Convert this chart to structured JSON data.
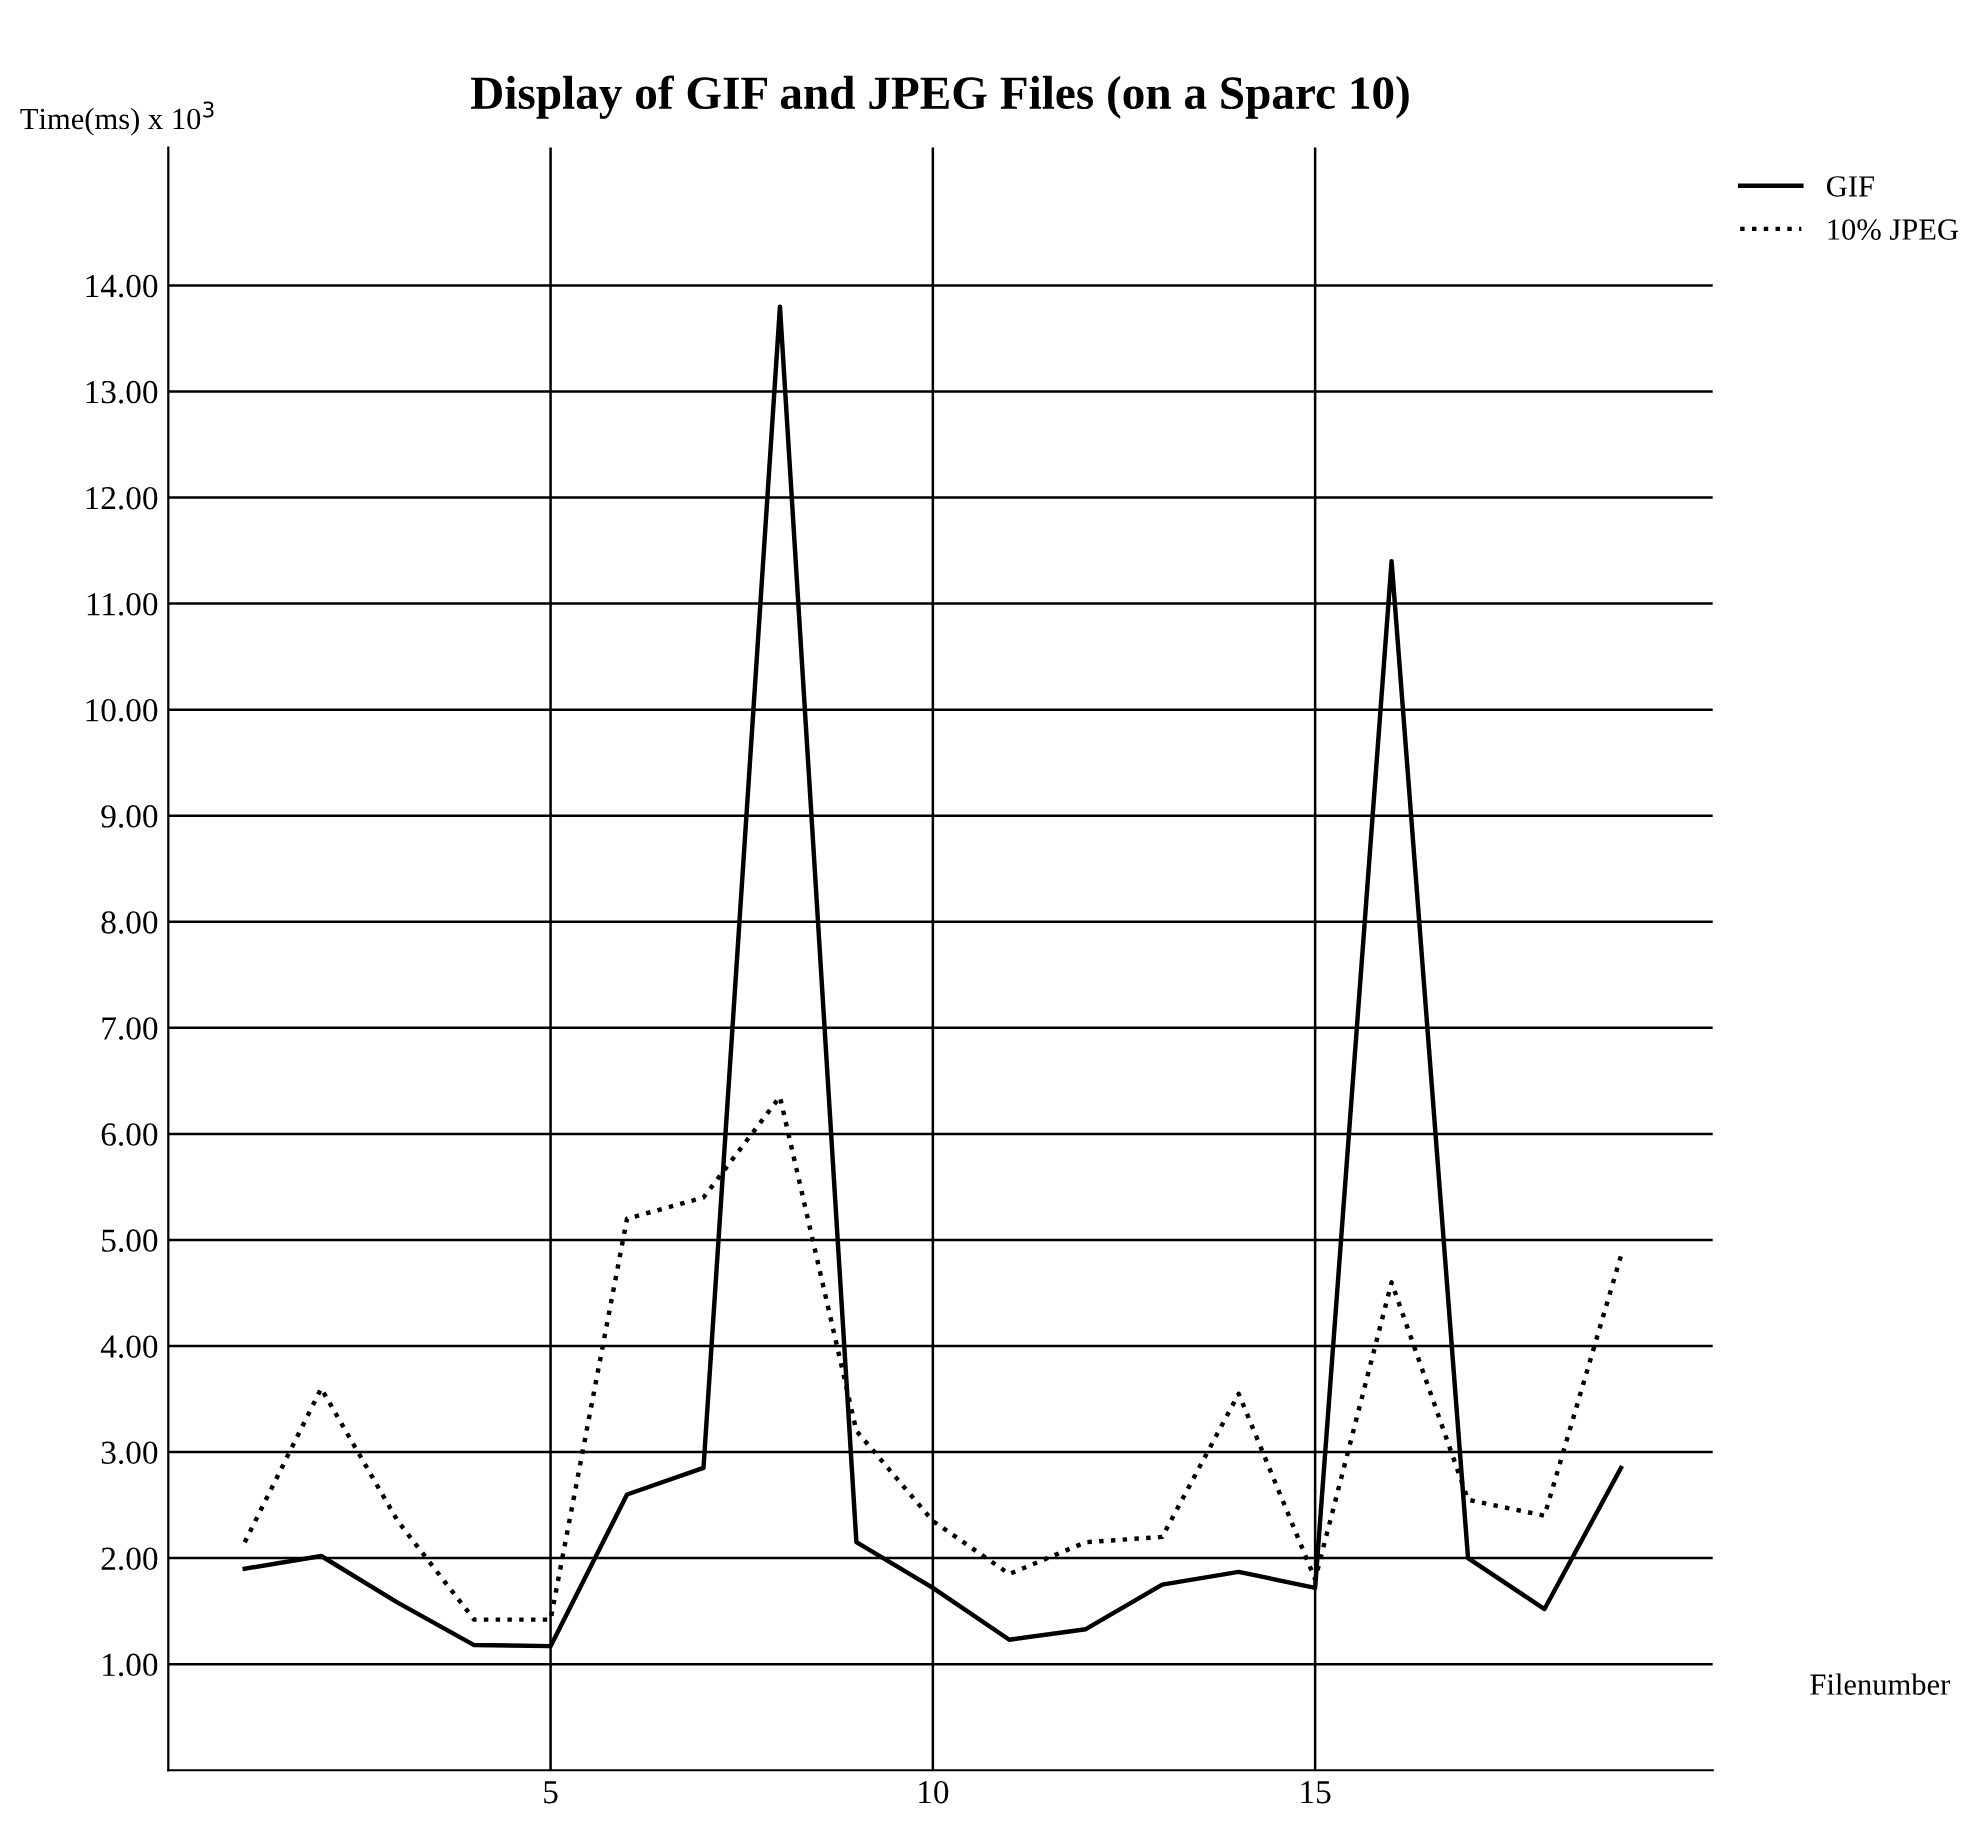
{
  "chart_data": {
    "type": "line",
    "title": "Display of GIF and JPEG Files (on a Sparc 10)",
    "ylabel": "Time(ms) x 10$^{3}$",
    "xlabel": "Filenumber",
    "x": [
      1,
      2,
      3,
      4,
      5,
      6,
      7,
      8,
      9,
      10,
      11,
      12,
      13,
      14,
      15,
      16,
      17,
      18,
      19
    ],
    "series": [
      {
        "name": "GIF",
        "color": "#000000",
        "line_style": "solid",
        "values": [
          1.9,
          2.02,
          1.58,
          1.18,
          1.17,
          2.6,
          2.85,
          13.8,
          2.15,
          1.72,
          1.23,
          1.33,
          1.75,
          1.87,
          1.72,
          11.4,
          2.0,
          1.52,
          2.85
        ]
      },
      {
        "name": "10% JPEG",
        "color": "#000000",
        "line_style": "dotted",
        "values": [
          2.15,
          3.6,
          2.35,
          1.42,
          1.42,
          5.2,
          5.4,
          6.35,
          3.2,
          2.35,
          1.85,
          2.15,
          2.2,
          3.55,
          1.8,
          4.6,
          2.55,
          2.4,
          4.85
        ]
      }
    ],
    "xlim": [
      0,
      20.2
    ],
    "ylim": [
      0,
      15.3
    ],
    "xticks": [
      5,
      10,
      15
    ],
    "yticks": [
      {
        "value": 1,
        "label": "1.00"
      },
      {
        "value": 2,
        "label": "2.00"
      },
      {
        "value": 3,
        "label": "3.00"
      },
      {
        "value": 4,
        "label": "4.00"
      },
      {
        "value": 5,
        "label": "5.00"
      },
      {
        "value": 6,
        "label": "6.00"
      },
      {
        "value": 7,
        "label": "7.00"
      },
      {
        "value": 8,
        "label": "8.00"
      },
      {
        "value": 9,
        "label": "9.00"
      },
      {
        "value": 10,
        "label": "10.00"
      },
      {
        "value": 11,
        "label": "11.00"
      },
      {
        "value": 12,
        "label": "12.00"
      },
      {
        "value": 13,
        "label": "13.00"
      },
      {
        "value": 14,
        "label": "14.00"
      }
    ],
    "grid": true,
    "legend": "top right"
  }
}
